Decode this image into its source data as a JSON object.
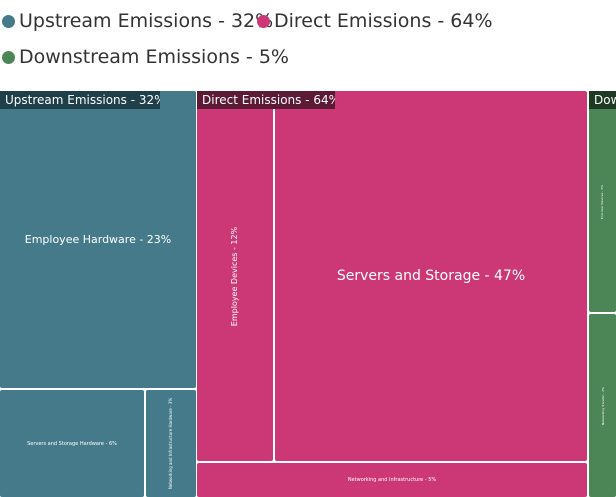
{
  "chart_data": {
    "type": "treemap",
    "title": "",
    "legend_position": "top-left",
    "groups": [
      {
        "name": "Upstream Emissions",
        "value": 32,
        "label": "Upstream Emissions - 32%",
        "color": "#447a8a",
        "header_color": "#1f3f4a",
        "children": [
          {
            "name": "Employee Hardware",
            "value": 23,
            "label": "Employee Hardware - 23%"
          },
          {
            "name": "Servers and Storage Hardware",
            "value": 6,
            "label": "Servers and Storage Hardware - 6%"
          },
          {
            "name": "Networking and Infrastructure Hardware",
            "value": 3,
            "label": "Networking and Infrastructure Hardware - 3%"
          }
        ]
      },
      {
        "name": "Direct Emissions",
        "value": 64,
        "label": "Direct Emissions - 64%",
        "color": "#cc3875",
        "header_color": "#5c1a36",
        "children": [
          {
            "name": "Servers and Storage",
            "value": 47,
            "label": "Servers and Storage - 47%"
          },
          {
            "name": "Employee Devices",
            "value": 12,
            "label": "Employee Devices - 12%"
          },
          {
            "name": "Networking and Infrastructure",
            "value": 5,
            "label": "Networking and Infrastructure - 5%"
          }
        ]
      },
      {
        "name": "Downstream Emissions",
        "value": 5,
        "label": "Downstream Emissions - 5%",
        "header_text": "Dow",
        "color": "#4c8656",
        "header_color": "#1e3a22",
        "children": [
          {
            "name": "End-User Devices",
            "value": 3,
            "label": "End-User Devices - 3%"
          },
          {
            "name": "Networking Transfer",
            "value": 2,
            "label": "Networking Transfer - 2%"
          }
        ]
      }
    ]
  },
  "legend": [
    {
      "label": "Upstream Emissions - 32%",
      "color": "#447a8a"
    },
    {
      "label": "Direct Emissions - 64%",
      "color": "#cc3875"
    },
    {
      "label": "Downstream Emissions - 5%",
      "color": "#4c8656"
    }
  ]
}
